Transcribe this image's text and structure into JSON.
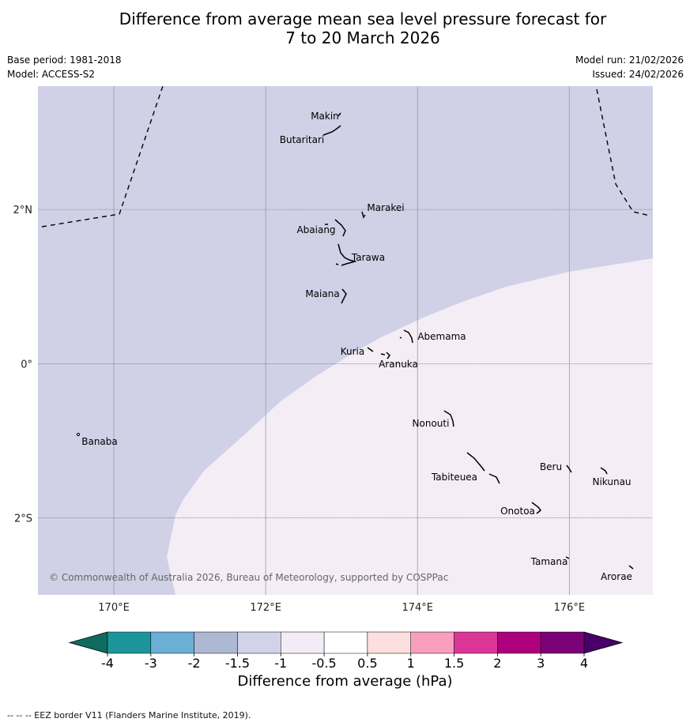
{
  "header": {
    "title_line1": "Difference from average mean sea level pressure forecast for",
    "title_line2": "7 to 20 March 2026",
    "base_period": "Base period: 1981-2018",
    "model": "Model: ACCESS-S2",
    "model_run": "Model run: 21/02/2026",
    "issued": "Issued: 24/02/2026"
  },
  "map": {
    "extent": {
      "lon_min": 169.0,
      "lon_max": 177.1,
      "lat_min": -3.0,
      "lat_max": 3.6
    },
    "lon_ticks": [
      {
        "lon": 170,
        "label": "170°E"
      },
      {
        "lon": 172,
        "label": "172°E"
      },
      {
        "lon": 174,
        "label": "174°E"
      },
      {
        "lon": 176,
        "label": "176°E"
      }
    ],
    "lat_ticks": [
      {
        "lat": 2,
        "label": "2°N"
      },
      {
        "lat": 0,
        "label": "0°"
      },
      {
        "lat": -2,
        "label": "2°S"
      }
    ],
    "places": [
      {
        "name": "Makin",
        "lon": 173.0,
        "lat": 3.3
      },
      {
        "name": "Butaritari",
        "lon": 172.8,
        "lat": 3.1
      },
      {
        "name": "Marakei",
        "lon": 173.3,
        "lat": 2.0
      },
      {
        "name": "Abaiang",
        "lon": 172.9,
        "lat": 1.8
      },
      {
        "name": "Tarawa",
        "lon": 173.0,
        "lat": 1.45
      },
      {
        "name": "Maiana",
        "lon": 173.0,
        "lat": 0.95
      },
      {
        "name": "Abemama",
        "lon": 173.9,
        "lat": 0.4
      },
      {
        "name": "Kuria",
        "lon": 173.4,
        "lat": 0.22
      },
      {
        "name": "Aranuka",
        "lon": 173.6,
        "lat": 0.16
      },
      {
        "name": "Nonouti",
        "lon": 174.4,
        "lat": -0.7
      },
      {
        "name": "Banaba",
        "lon": 169.5,
        "lat": -0.86
      },
      {
        "name": "Tabiteuea",
        "lon": 174.8,
        "lat": -1.35
      },
      {
        "name": "Beru",
        "lon": 176.0,
        "lat": -1.33
      },
      {
        "name": "Nikunau",
        "lon": 176.45,
        "lat": -1.35
      },
      {
        "name": "Onotoa",
        "lon": 175.55,
        "lat": -1.8
      },
      {
        "name": "Tamana",
        "lon": 175.98,
        "lat": -2.5
      },
      {
        "name": "Arorae",
        "lon": 176.82,
        "lat": -2.64
      }
    ],
    "anomaly_field": {
      "northwest_value": "-1.5 to -1",
      "southeast_value": "-1 to -0.5"
    },
    "copyright": "© Commonwealth of Australia 2026, Bureau of Meteorology, supported by COSPPac"
  },
  "colorbar": {
    "ticks": [
      "-4",
      "-3",
      "-2",
      "-1.5",
      "-1",
      "-0.5",
      "0.5",
      "1",
      "1.5",
      "2",
      "3",
      "4"
    ],
    "colors": [
      "#1b9599",
      "#6baed6",
      "#adb8d3",
      "#d2d2e8",
      "#f3ecf6",
      "#ffffff",
      "#fddfdf",
      "#f99ebd",
      "#dd3497",
      "#ae017e",
      "#7a0177"
    ],
    "under_color": "#0f6b5f",
    "over_color": "#49006a",
    "label": "Difference from average (hPa)"
  },
  "footnote": "--  --  -- EEZ border V11 (Flanders Marine Institute, 2019).",
  "colors": {
    "negative_fill": "#d0d0e6",
    "neutral_fill": "#f4edf6",
    "gridline": "#9a9aa8"
  }
}
